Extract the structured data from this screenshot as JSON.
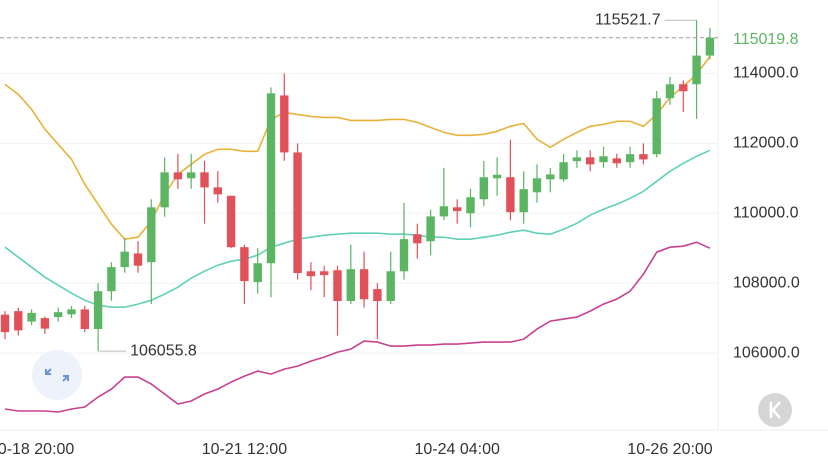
{
  "chart_data": {
    "type": "candlestick",
    "categories": [
      null,
      null,
      "10-18 20:00",
      null,
      null,
      null,
      null,
      null,
      null,
      null,
      null,
      null,
      null,
      null,
      null,
      null,
      null,
      null,
      "10-21 12:00",
      null,
      null,
      null,
      null,
      null,
      null,
      null,
      null,
      null,
      null,
      null,
      null,
      null,
      null,
      null,
      "10-24 04:00",
      null,
      null,
      null,
      null,
      null,
      null,
      null,
      null,
      null,
      null,
      null,
      null,
      null,
      null,
      null,
      "10-26 20:00",
      null,
      null,
      null
    ],
    "open": [
      107100,
      107200,
      106900,
      107000,
      107030,
      107110,
      107250,
      106690,
      107770,
      108460,
      108850,
      108600,
      110170,
      111170,
      111000,
      111170,
      110740,
      110500,
      109030,
      108030,
      108570,
      113370,
      111740,
      108340,
      108340,
      108370,
      107490,
      108400,
      107830,
      107490,
      108340,
      109400,
      109200,
      109910,
      110170,
      110000,
      110400,
      111000,
      111030,
      110030,
      110600,
      110970,
      110970,
      111490,
      111600,
      111460,
      111570,
      111460,
      111690,
      111690,
      113290,
      113690,
      113690,
      114510
    ],
    "high": [
      107200,
      107300,
      107250,
      107050,
      107300,
      107350,
      107350,
      108000,
      108600,
      109300,
      109200,
      110400,
      111600,
      111700,
      111700,
      111500,
      111200,
      110500,
      109100,
      109000,
      113600,
      114000,
      112000,
      108600,
      108500,
      108500,
      109100,
      108900,
      108000,
      108900,
      110300,
      109700,
      110100,
      111300,
      110400,
      110700,
      111500,
      111600,
      112100,
      111200,
      111400,
      111300,
      111700,
      111800,
      111800,
      111900,
      111700,
      111900,
      112000,
      113500,
      113900,
      113800,
      115521.7,
      115300
    ],
    "low": [
      106400,
      106500,
      106800,
      106550,
      106900,
      107000,
      106600,
      106055.8,
      107500,
      108300,
      108300,
      107400,
      109900,
      110700,
      110700,
      109700,
      110300,
      109000,
      107400,
      107700,
      107600,
      111500,
      108100,
      107800,
      107600,
      106500,
      107400,
      107300,
      106400,
      107400,
      108100,
      108700,
      108800,
      109800,
      109700,
      109600,
      110200,
      110500,
      109800,
      109700,
      110300,
      110600,
      110900,
      111300,
      111200,
      111300,
      111300,
      111300,
      111400,
      111600,
      113100,
      112900,
      112700,
      114400
    ],
    "close": [
      106600,
      106650,
      107150,
      106700,
      107170,
      107250,
      106690,
      107770,
      108460,
      108900,
      108500,
      110170,
      111170,
      110970,
      111170,
      110740,
      110540,
      109030,
      108060,
      108570,
      113430,
      111740,
      108290,
      108200,
      108230,
      107490,
      108400,
      107540,
      107490,
      108340,
      109260,
      109140,
      109910,
      110200,
      110060,
      110460,
      111030,
      111100,
      110030,
      110690,
      111000,
      111110,
      111460,
      111600,
      111400,
      111630,
      111430,
      111690,
      111540,
      113290,
      113690,
      113490,
      114510,
      115019.8
    ],
    "up_color": "#5cb562",
    "down_color": "#e0515a",
    "series": [
      {
        "color": "#e8b23a",
        "values": [
          113686,
          113400,
          112971,
          112400,
          111971,
          111543,
          110829,
          110257,
          109686,
          109257,
          109314,
          109771,
          110543,
          111114,
          111400,
          111686,
          111829,
          111829,
          111771,
          111771,
          112686,
          112886,
          112829,
          112771,
          112743,
          112743,
          112657,
          112657,
          112657,
          112686,
          112686,
          112600,
          112457,
          112314,
          112229,
          112229,
          112257,
          112343,
          112486,
          112571,
          112114,
          111886,
          112114,
          112314,
          112486,
          112543,
          112629,
          112629,
          112486,
          112829,
          113314,
          113629,
          113971,
          114486
        ]
      },
      {
        "color": "#5fd1b5",
        "values": [
          109029,
          108743,
          108457,
          108171,
          107943,
          107714,
          107514,
          107371,
          107314,
          107314,
          107400,
          107514,
          107686,
          107886,
          108143,
          108343,
          108514,
          108629,
          108686,
          108800,
          109029,
          109143,
          109257,
          109314,
          109371,
          109400,
          109429,
          109429,
          109429,
          109400,
          109400,
          109371,
          109314,
          109314,
          109257,
          109257,
          109314,
          109371,
          109457,
          109514,
          109429,
          109400,
          109543,
          109714,
          109943,
          110114,
          110257,
          110429,
          110629,
          110914,
          111200,
          111429,
          111629,
          111800
        ]
      },
      {
        "color": "#c9418f",
        "values": [
          104400,
          104343,
          104343,
          104343,
          104314,
          104400,
          104457,
          104743,
          104971,
          105314,
          105314,
          105114,
          104829,
          104543,
          104629,
          104829,
          104971,
          105171,
          105343,
          105486,
          105400,
          105543,
          105629,
          105771,
          105886,
          106029,
          106114,
          106343,
          106314,
          106200,
          106200,
          106229,
          106229,
          106257,
          106257,
          106286,
          106314,
          106314,
          106314,
          106400,
          106686,
          106914,
          106971,
          107029,
          107200,
          107400,
          107543,
          107771,
          108257,
          108886,
          109029,
          109057,
          109171,
          109000
        ]
      }
    ],
    "ylim": [
      103800,
      116100
    ],
    "yticks": [
      {
        "value": 106000,
        "label": "106000.0"
      },
      {
        "value": 108000,
        "label": "108000.0"
      },
      {
        "value": 110000,
        "label": "110000.0"
      },
      {
        "value": 112000,
        "label": "112000.0"
      },
      {
        "value": 114000,
        "label": "114000.0"
      }
    ],
    "grid": true
  }
}
